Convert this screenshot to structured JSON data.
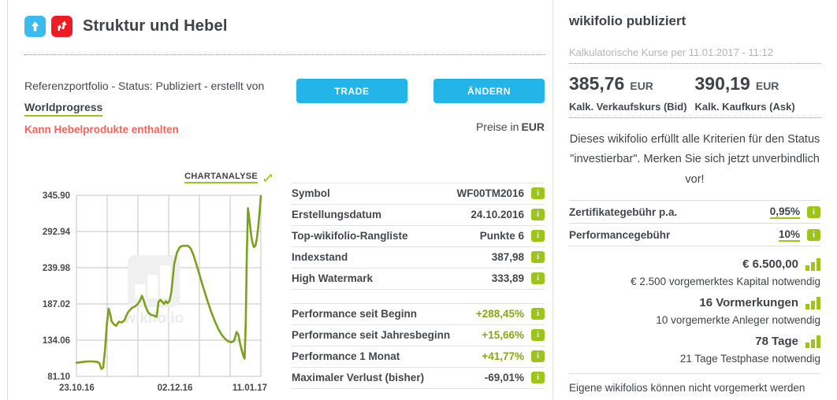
{
  "colors": {
    "accent_cyan": "#24b5e8",
    "brand_green": "#9dc41a",
    "line_green": "#7da01e",
    "badge_blue": "#3cbcee",
    "badge_red": "#ed1c24",
    "warning_red": "#f3645f"
  },
  "header": {
    "title": "Struktur und Hebel",
    "status_line": "Referenzportfolio - Status: Publiziert - erstellt von",
    "creator": "Worldprogress",
    "leverage_warning": "Kann Hebelprodukte enthalten",
    "trade_button": "TRADE",
    "change_button": "ÄNDERN",
    "prices_in": "Preise in",
    "currency": "EUR"
  },
  "chart": {
    "analyse_link": "CHARTANALYSE"
  },
  "chart_data": {
    "type": "line",
    "title": "",
    "xlabel": "",
    "ylabel": "",
    "ylim": [
      81.1,
      345.9
    ],
    "yticks": [
      81.1,
      134.06,
      187.02,
      239.98,
      292.94,
      345.9
    ],
    "ytick_labels": [
      "81.10",
      "134.06",
      "187.02",
      "239.98",
      "292.94",
      "345.90"
    ],
    "xtick_labels": [
      "23.10.16",
      "02.12.16",
      "11.01.17"
    ],
    "grid": true,
    "legend": false,
    "line_color": "#7da01e",
    "watermark": "wikifolio",
    "series": [
      {
        "name": "Indexstand",
        "points": [
          [
            0.0,
            101
          ],
          [
            0.03,
            102
          ],
          [
            0.06,
            103
          ],
          [
            0.09,
            103
          ],
          [
            0.115,
            102
          ],
          [
            0.125,
            100
          ],
          [
            0.135,
            92
          ],
          [
            0.145,
            94
          ],
          [
            0.155,
            120
          ],
          [
            0.165,
            158
          ],
          [
            0.175,
            180
          ],
          [
            0.185,
            170
          ],
          [
            0.19,
            162
          ],
          [
            0.2,
            158
          ],
          [
            0.215,
            155
          ],
          [
            0.23,
            161
          ],
          [
            0.245,
            160
          ],
          [
            0.26,
            163
          ],
          [
            0.28,
            175
          ],
          [
            0.3,
            181
          ],
          [
            0.315,
            183
          ],
          [
            0.33,
            186
          ],
          [
            0.345,
            192
          ],
          [
            0.355,
            199
          ],
          [
            0.365,
            192
          ],
          [
            0.375,
            183
          ],
          [
            0.39,
            174
          ],
          [
            0.405,
            171
          ],
          [
            0.42,
            170
          ],
          [
            0.435,
            168
          ],
          [
            0.445,
            190
          ],
          [
            0.455,
            193
          ],
          [
            0.465,
            190
          ],
          [
            0.475,
            187
          ],
          [
            0.485,
            191
          ],
          [
            0.495,
            188
          ],
          [
            0.505,
            192
          ],
          [
            0.515,
            205
          ],
          [
            0.53,
            245
          ],
          [
            0.545,
            262
          ],
          [
            0.56,
            270
          ],
          [
            0.575,
            272
          ],
          [
            0.59,
            272
          ],
          [
            0.605,
            272
          ],
          [
            0.62,
            268
          ],
          [
            0.635,
            258
          ],
          [
            0.65,
            245
          ],
          [
            0.665,
            232
          ],
          [
            0.68,
            218
          ],
          [
            0.695,
            205
          ],
          [
            0.71,
            192
          ],
          [
            0.73,
            176
          ],
          [
            0.75,
            162
          ],
          [
            0.77,
            150
          ],
          [
            0.79,
            141
          ],
          [
            0.81,
            135
          ],
          [
            0.825,
            132
          ],
          [
            0.84,
            131
          ],
          [
            0.855,
            133
          ],
          [
            0.868,
            146
          ],
          [
            0.878,
            142
          ],
          [
            0.888,
            128
          ],
          [
            0.898,
            118
          ],
          [
            0.906,
            110
          ],
          [
            0.912,
            107
          ],
          [
            0.918,
            160
          ],
          [
            0.924,
            260
          ],
          [
            0.93,
            327
          ],
          [
            0.938,
            310
          ],
          [
            0.946,
            290
          ],
          [
            0.954,
            277
          ],
          [
            0.962,
            270
          ],
          [
            0.97,
            272
          ],
          [
            0.978,
            282
          ],
          [
            0.986,
            300
          ],
          [
            0.993,
            322
          ],
          [
            1.0,
            345
          ]
        ]
      }
    ]
  },
  "details": {
    "rows": [
      {
        "label": "Symbol",
        "value": "WF00TM2016"
      },
      {
        "label": "Erstellungsdatum",
        "value": "24.10.2016"
      },
      {
        "label": "Top-wikifolio-Rangliste",
        "value": "Punkte 6"
      },
      {
        "label": "Indexstand",
        "value": "387,98"
      },
      {
        "label": "High Watermark",
        "value": "333,89"
      }
    ],
    "performance_rows": [
      {
        "label": "Performance seit Beginn",
        "value": "+288,45%"
      },
      {
        "label": "Performance seit Jahresbeginn",
        "value": "+15,66%"
      },
      {
        "label": "Performance 1 Monat",
        "value": "+41,77%"
      },
      {
        "label": "Maximaler Verlust (bisher)",
        "value": "-69,01%"
      }
    ]
  },
  "aside": {
    "title": "wikifolio publiziert",
    "quote_time": "Kalkulatorische Kurse per 11.01.2017 - 11:12",
    "bid": {
      "value": "385,76",
      "currency": "EUR",
      "label": "Kalk. Verkaufskurs (Bid)"
    },
    "ask": {
      "value": "390,19",
      "currency": "EUR",
      "label": "Kalk. Kaufkurs (Ask)"
    },
    "promo_line1": "Dieses wikifolio erfüllt alle Kriterien für den Status",
    "promo_line2": "\"investierbar\". Merken Sie sich jetzt unverbindlich vor!",
    "fees": [
      {
        "label": "Zertifikategebühr p.a.",
        "value": "0,95%"
      },
      {
        "label": "Performancegebühr",
        "value": "10%"
      }
    ],
    "milestones": [
      {
        "value": "€ 6.500,00",
        "requirement": "€ 2.500 vorgemerktes Kapital notwendig"
      },
      {
        "value": "16 Vormerkungen",
        "requirement": "10 vorgemerkte Anleger notwendig"
      },
      {
        "value": "78 Tage",
        "requirement": "21 Tage Testphase notwendig"
      }
    ],
    "footnote": "Eigene wikifolios können nicht vorgemerkt werden"
  }
}
